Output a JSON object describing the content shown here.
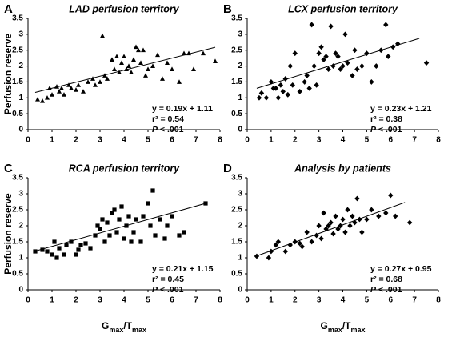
{
  "chart_data": [
    {
      "type": "scatter",
      "panel_label": "A",
      "title": "LAD perfusion territory",
      "y_label": "Perfusion reserve",
      "marker": "triangle",
      "color": "#000000",
      "x": [
        0.4,
        0.6,
        0.8,
        0.9,
        1.0,
        1.2,
        1.3,
        1.4,
        1.5,
        1.7,
        1.8,
        2.0,
        2.1,
        2.3,
        2.5,
        2.7,
        2.8,
        3.0,
        3.1,
        3.2,
        3.3,
        3.5,
        3.6,
        3.7,
        3.8,
        3.9,
        4.0,
        4.1,
        4.2,
        4.3,
        4.4,
        4.5,
        4.6,
        4.7,
        4.8,
        4.9,
        5.0,
        5.2,
        5.4,
        5.6,
        5.8,
        6.0,
        6.3,
        6.5,
        6.7,
        6.9,
        7.3,
        7.8
      ],
      "y": [
        0.95,
        0.9,
        1.0,
        1.3,
        1.1,
        1.35,
        1.2,
        1.3,
        1.1,
        1.4,
        1.3,
        1.25,
        1.4,
        1.2,
        1.5,
        1.6,
        1.4,
        1.5,
        2.95,
        1.7,
        1.6,
        2.2,
        1.9,
        2.3,
        1.8,
        2.1,
        2.3,
        1.9,
        2.0,
        1.8,
        2.2,
        2.6,
        2.5,
        2.1,
        2.5,
        1.7,
        1.9,
        2.0,
        2.35,
        1.6,
        2.1,
        1.9,
        1.5,
        2.4,
        2.4,
        1.9,
        2.4,
        2.15
      ],
      "fit_line": {
        "x": [
          0.3,
          7.8
        ],
        "y": [
          1.17,
          2.59
        ]
      },
      "equation": "y = 0.19x + 1.11",
      "r_squared": "r² = 0.54",
      "p_value": {
        "symbol": "P",
        "text": " < .001"
      },
      "xlim": [
        0,
        8
      ],
      "ylim": [
        0,
        3.5
      ],
      "xticks": [
        0,
        1,
        2,
        3,
        4,
        5,
        6,
        7,
        8
      ],
      "yticks": [
        0,
        0.5,
        1,
        1.5,
        2,
        2.5,
        3,
        3.5
      ]
    },
    {
      "type": "scatter",
      "panel_label": "B",
      "title": "LCX perfusion territory",
      "marker": "diamond",
      "color": "#000000",
      "x": [
        0.5,
        0.6,
        0.8,
        1.0,
        1.1,
        1.2,
        1.3,
        1.4,
        1.5,
        1.6,
        1.7,
        1.8,
        1.9,
        2.0,
        2.2,
        2.4,
        2.5,
        2.6,
        2.7,
        2.8,
        2.9,
        3.0,
        3.1,
        3.2,
        3.3,
        3.4,
        3.5,
        3.6,
        3.7,
        3.8,
        3.9,
        4.0,
        4.1,
        4.2,
        4.4,
        4.5,
        4.6,
        4.8,
        5.0,
        5.2,
        5.4,
        5.6,
        5.8,
        5.9,
        6.1,
        6.3,
        7.5
      ],
      "y": [
        1.0,
        1.15,
        1.0,
        1.5,
        1.3,
        1.3,
        1.0,
        1.4,
        1.2,
        1.6,
        1.1,
        2.0,
        1.4,
        2.4,
        1.2,
        1.5,
        1.7,
        1.3,
        3.3,
        2.0,
        1.4,
        2.4,
        2.6,
        2.2,
        2.3,
        1.9,
        3.25,
        2.0,
        2.4,
        2.3,
        1.9,
        2.0,
        3.0,
        2.1,
        1.7,
        2.5,
        1.9,
        2.0,
        2.4,
        1.5,
        2.0,
        2.5,
        3.3,
        2.3,
        2.6,
        2.7,
        2.1
      ],
      "fit_line": {
        "x": [
          0.4,
          7.2
        ],
        "y": [
          1.3,
          2.87
        ]
      },
      "equation": "y = 0.23x + 1.21",
      "r_squared": "r² = 0.38",
      "p_value": {
        "symbol": "P",
        "text": " < .001"
      },
      "xlim": [
        0,
        8
      ],
      "ylim": [
        0,
        3.5
      ],
      "xticks": [
        0,
        1,
        2,
        3,
        4,
        5,
        6,
        7,
        8
      ],
      "yticks": [
        0,
        0.5,
        1,
        1.5,
        2,
        2.5,
        3,
        3.5
      ]
    },
    {
      "type": "scatter",
      "panel_label": "C",
      "title": "RCA perfusion territory",
      "y_label": "Perfusion reserve",
      "x_label": [
        "G",
        "max",
        "/T",
        "max"
      ],
      "marker": "square",
      "color": "#000000",
      "x": [
        0.3,
        0.6,
        0.8,
        1.0,
        1.1,
        1.2,
        1.3,
        1.5,
        1.6,
        1.8,
        2.0,
        2.1,
        2.2,
        2.4,
        2.6,
        2.8,
        2.9,
        3.0,
        3.1,
        3.2,
        3.3,
        3.4,
        3.5,
        3.6,
        3.7,
        3.8,
        3.9,
        4.0,
        4.1,
        4.2,
        4.3,
        4.4,
        4.5,
        4.7,
        4.8,
        5.0,
        5.1,
        5.2,
        5.3,
        5.5,
        5.7,
        5.8,
        6.0,
        6.3,
        6.5,
        7.4
      ],
      "y": [
        1.2,
        1.25,
        1.2,
        1.1,
        1.5,
        1.0,
        1.3,
        1.1,
        1.4,
        1.5,
        1.1,
        1.25,
        1.4,
        1.45,
        1.3,
        1.7,
        2.0,
        1.9,
        2.2,
        1.5,
        2.1,
        1.7,
        2.4,
        2.5,
        1.8,
        2.2,
        2.6,
        1.6,
        2.0,
        2.3,
        1.5,
        1.8,
        2.2,
        1.5,
        2.3,
        2.7,
        2.0,
        3.1,
        1.7,
        2.2,
        1.6,
        2.0,
        2.3,
        1.7,
        1.8,
        2.7
      ],
      "fit_line": {
        "x": [
          0.3,
          7.4
        ],
        "y": [
          1.21,
          2.7
        ]
      },
      "equation": "y = 0.21x + 1.15",
      "r_squared": "r² = 0.45",
      "p_value": {
        "symbol": "P",
        "text": " < .001"
      },
      "xlim": [
        0,
        8
      ],
      "ylim": [
        0,
        3.5
      ],
      "xticks": [
        0,
        1,
        2,
        3,
        4,
        5,
        6,
        7,
        8
      ],
      "yticks": [
        0,
        0.5,
        1,
        1.5,
        2,
        2.5,
        3,
        3.5
      ]
    },
    {
      "type": "scatter",
      "panel_label": "D",
      "title": "Analysis by patients",
      "x_label": [
        "G",
        "max",
        "/T",
        "max"
      ],
      "marker": "diamond",
      "color": "#000000",
      "x": [
        0.4,
        0.9,
        1.0,
        1.2,
        1.3,
        1.6,
        1.8,
        2.0,
        2.2,
        2.3,
        2.5,
        2.7,
        2.9,
        3.0,
        3.1,
        3.2,
        3.3,
        3.4,
        3.5,
        3.6,
        3.7,
        3.8,
        3.9,
        4.0,
        4.1,
        4.2,
        4.3,
        4.4,
        4.5,
        4.6,
        4.7,
        4.8,
        5.0,
        5.2,
        5.5,
        5.8,
        6.0,
        6.2,
        6.8
      ],
      "y": [
        1.05,
        1.0,
        1.2,
        1.4,
        1.5,
        1.2,
        1.4,
        1.5,
        1.45,
        1.35,
        1.8,
        1.5,
        1.7,
        2.0,
        1.6,
        2.4,
        1.9,
        2.0,
        2.1,
        1.75,
        2.3,
        1.9,
        2.0,
        2.2,
        1.8,
        2.5,
        2.0,
        2.3,
        2.1,
        2.85,
        2.2,
        1.8,
        2.2,
        2.5,
        2.3,
        2.4,
        2.95,
        2.3,
        2.1
      ],
      "fit_line": {
        "x": [
          0.4,
          6.6
        ],
        "y": [
          1.06,
          2.73
        ]
      },
      "equation": "y = 0.27x + 0.95",
      "r_squared": "r² = 0.68",
      "p_value": {
        "symbol": "P",
        "text": " < .001"
      },
      "xlim": [
        0,
        8
      ],
      "ylim": [
        0,
        3.5
      ],
      "xticks": [
        0,
        1,
        2,
        3,
        4,
        5,
        6,
        7,
        8
      ],
      "yticks": [
        0,
        0.5,
        1,
        1.5,
        2,
        2.5,
        3,
        3.5
      ]
    }
  ]
}
